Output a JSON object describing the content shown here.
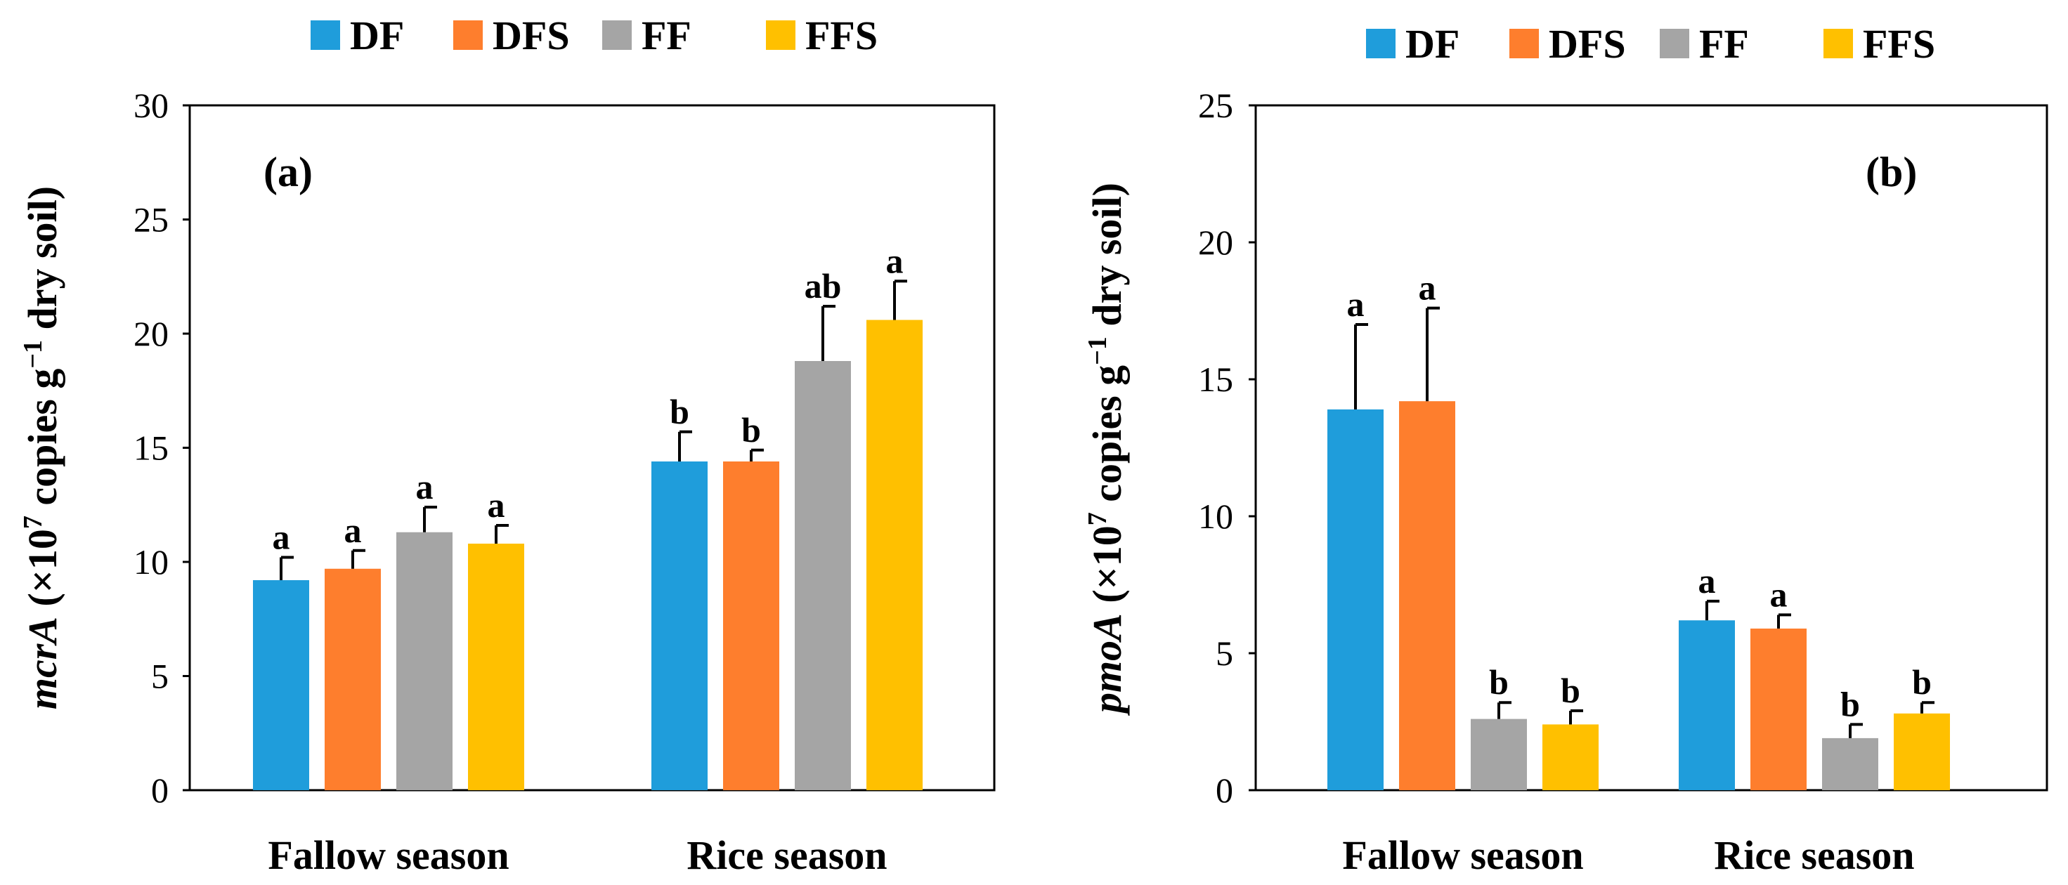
{
  "chart_data": [
    {
      "type": "bar",
      "panel_label": "(a)",
      "categories": [
        "Fallow season",
        "Rice season"
      ],
      "ylabel": {
        "gene": "mcrA",
        "unit_prefix": " (×10",
        "exp1": "7",
        "unit_mid": " copies g",
        "exp2": "−1",
        "unit_suffix": " dry soil)"
      },
      "ylim": [
        0,
        30
      ],
      "yticks": [
        0,
        5,
        10,
        15,
        20,
        25,
        30
      ],
      "legend": {
        "placement": "top",
        "entries": [
          "DF",
          "DFS",
          "FF",
          "FFS"
        ]
      },
      "series": [
        {
          "name": "DF",
          "color": "#1f9ddb",
          "values": [
            9.2,
            14.4
          ],
          "errors": [
            1.0,
            1.3
          ],
          "letters": [
            "a",
            "b"
          ]
        },
        {
          "name": "DFS",
          "color": "#fe7e2d",
          "values": [
            9.7,
            14.4
          ],
          "errors": [
            0.8,
            0.5
          ],
          "letters": [
            "a",
            "b"
          ]
        },
        {
          "name": "FF",
          "color": "#a5a5a5",
          "values": [
            11.3,
            18.8
          ],
          "errors": [
            1.1,
            2.4
          ],
          "letters": [
            "a",
            "ab"
          ]
        },
        {
          "name": "FFS",
          "color": "#ffc000",
          "values": [
            10.8,
            20.6
          ],
          "errors": [
            0.8,
            1.7
          ],
          "letters": [
            "a",
            "a"
          ]
        }
      ]
    },
    {
      "type": "bar",
      "panel_label": "(b)",
      "categories": [
        "Fallow season",
        "Rice season"
      ],
      "ylabel": {
        "gene": "pmoA",
        "unit_prefix": " (×10",
        "exp1": "7",
        "unit_mid": " copies g",
        "exp2": "−1",
        "unit_suffix": " dry soil)"
      },
      "ylim": [
        0,
        25
      ],
      "yticks": [
        0,
        5,
        10,
        15,
        20,
        25
      ],
      "legend": {
        "placement": "top",
        "entries": [
          "DF",
          "DFS",
          "FF",
          "FFS"
        ]
      },
      "series": [
        {
          "name": "DF",
          "color": "#1f9ddb",
          "values": [
            13.9,
            6.2
          ],
          "errors": [
            3.1,
            0.7
          ],
          "letters": [
            "a",
            "a"
          ]
        },
        {
          "name": "DFS",
          "color": "#fe7e2d",
          "values": [
            14.2,
            5.9
          ],
          "errors": [
            3.4,
            0.5
          ],
          "letters": [
            "a",
            "a"
          ]
        },
        {
          "name": "FF",
          "color": "#a5a5a5",
          "values": [
            2.6,
            1.9
          ],
          "errors": [
            0.6,
            0.5
          ],
          "letters": [
            "b",
            "b"
          ]
        },
        {
          "name": "FFS",
          "color": "#ffc000",
          "values": [
            2.4,
            2.8
          ],
          "errors": [
            0.5,
            0.4
          ],
          "letters": [
            "b",
            "b"
          ]
        }
      ]
    }
  ]
}
